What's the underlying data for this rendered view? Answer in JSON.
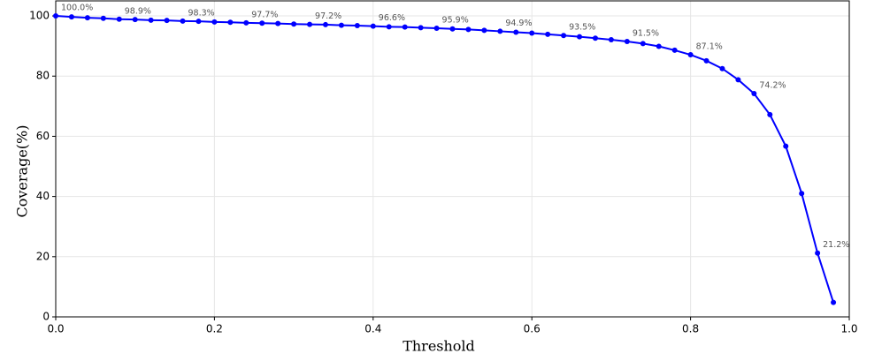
{
  "chart_data": {
    "type": "line",
    "xlabel": "Threshold",
    "ylabel": "Coverage(%)",
    "x": [
      0,
      0.02,
      0.04,
      0.06,
      0.08,
      0.1,
      0.12,
      0.14,
      0.16,
      0.18,
      0.2,
      0.22,
      0.24,
      0.26,
      0.28,
      0.3,
      0.32,
      0.34,
      0.36,
      0.38,
      0.4,
      0.42,
      0.44,
      0.46,
      0.48,
      0.5,
      0.52,
      0.54,
      0.56,
      0.58,
      0.6,
      0.62,
      0.64,
      0.66,
      0.68,
      0.7,
      0.72,
      0.74,
      0.76,
      0.78,
      0.8,
      0.82,
      0.84,
      0.86,
      0.88,
      0.9,
      0.92,
      0.94,
      0.96,
      0.98
    ],
    "series": [
      {
        "color": "#0000ff",
        "values": [
          100.0,
          99.7,
          99.4,
          99.2,
          98.9,
          98.8,
          98.6,
          98.5,
          98.3,
          98.2,
          98.0,
          97.9,
          97.7,
          97.6,
          97.5,
          97.3,
          97.2,
          97.1,
          96.9,
          96.8,
          96.6,
          96.4,
          96.3,
          96.1,
          95.9,
          95.7,
          95.5,
          95.2,
          94.9,
          94.6,
          94.3,
          93.9,
          93.5,
          93.1,
          92.6,
          92.1,
          91.5,
          90.8,
          89.9,
          88.6,
          87.1,
          85.1,
          82.5,
          78.8,
          74.2,
          67.2,
          56.7,
          41.0,
          21.2,
          4.8
        ],
        "value_labels": [
          "100.0%",
          null,
          null,
          null,
          "98.9%",
          null,
          null,
          null,
          "98.3%",
          null,
          null,
          null,
          "97.7%",
          null,
          null,
          null,
          "97.2%",
          null,
          null,
          null,
          "96.6%",
          null,
          null,
          null,
          "95.9%",
          null,
          null,
          null,
          "94.9%",
          null,
          null,
          null,
          "93.5%",
          null,
          null,
          null,
          "91.5%",
          null,
          null,
          null,
          "87.1%",
          null,
          null,
          null,
          "74.2%",
          null,
          null,
          null,
          "21.2%",
          null
        ]
      }
    ],
    "xlim": [
      0,
      1
    ],
    "ylim": [
      0,
      105
    ],
    "xticks": [
      {
        "value": 0,
        "label": "0.0"
      },
      0.2,
      0.4,
      0.6,
      0.8,
      {
        "value": 1,
        "label": "1.0"
      }
    ],
    "yticks": [
      0,
      20,
      40,
      60,
      80,
      100
    ],
    "grid": true
  }
}
